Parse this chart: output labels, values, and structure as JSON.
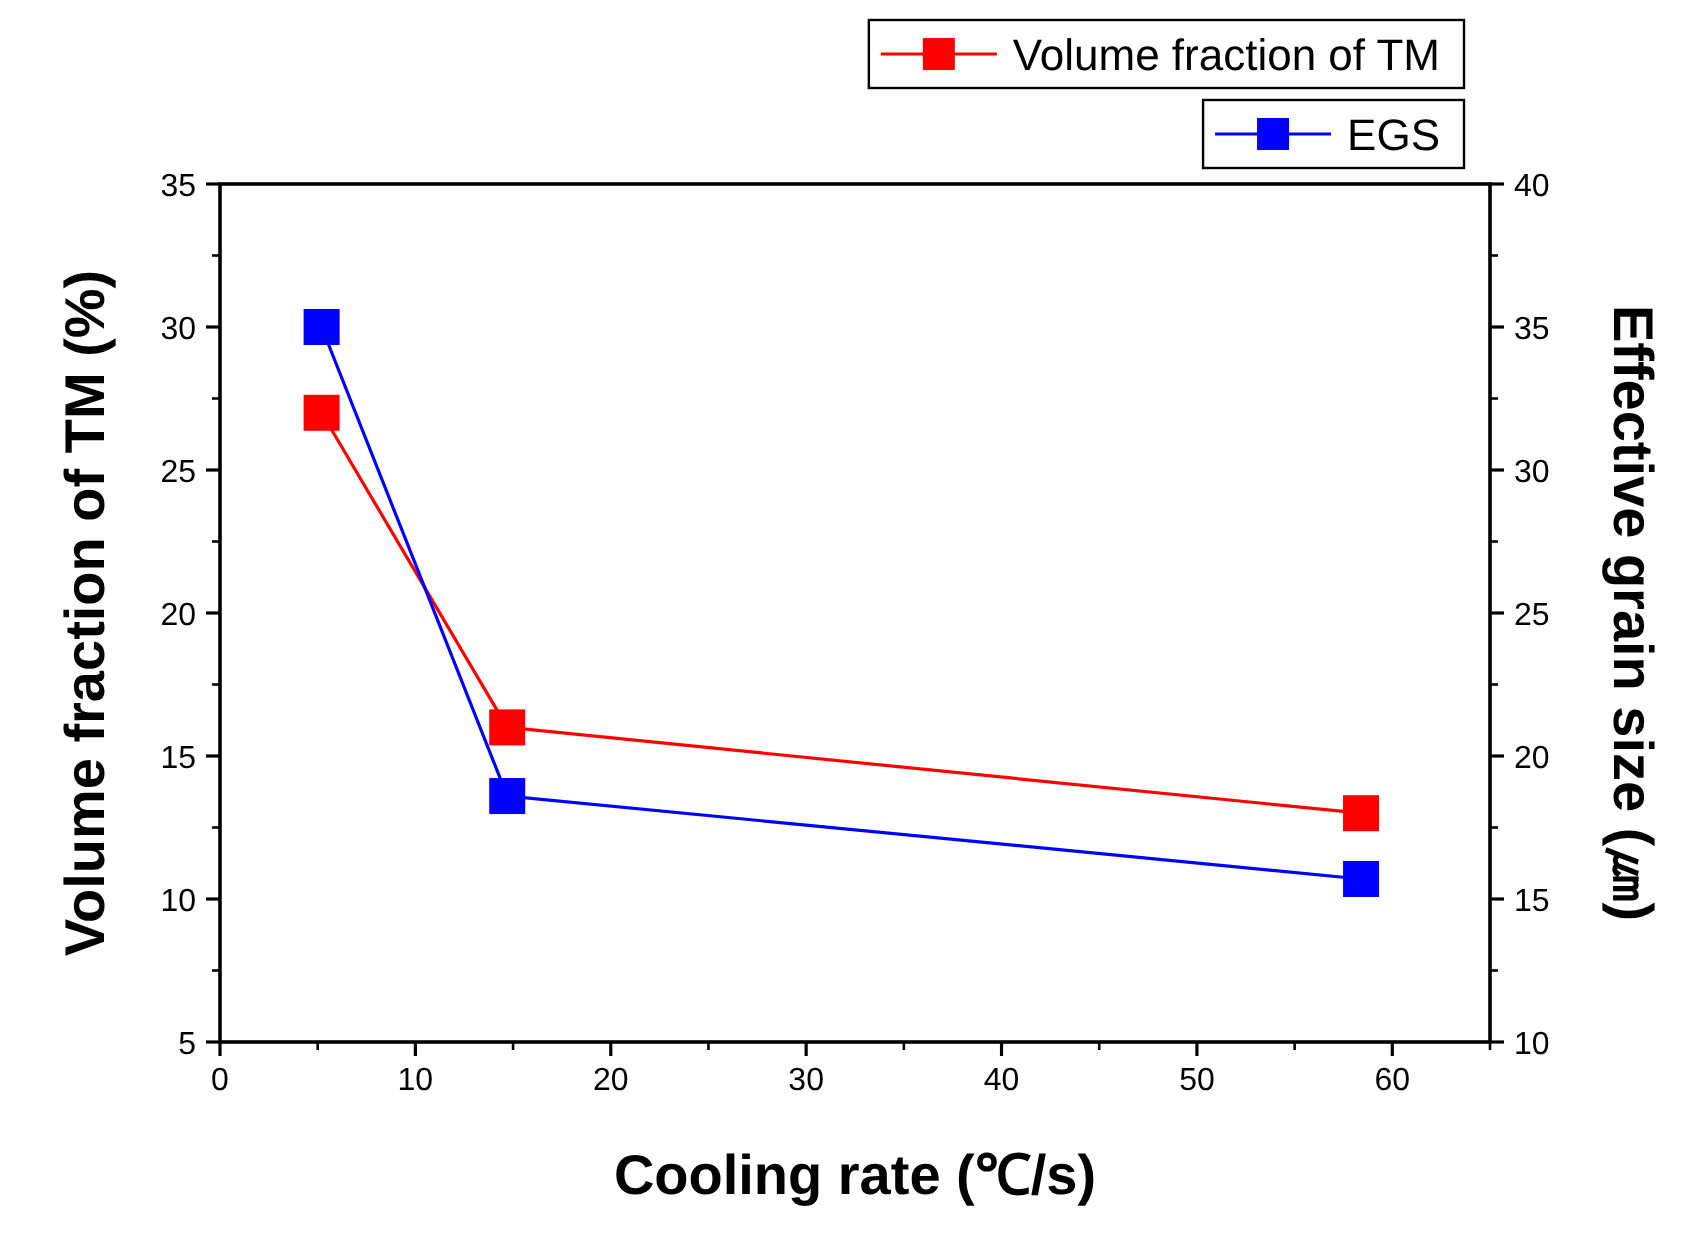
{
  "chart_data": {
    "type": "line",
    "xlabel": "Cooling rate (℃/s)",
    "ylabel": "Volume fraction of TM (%)",
    "y2label": "Effective grain size (㎛)",
    "x": [
      5.2,
      14.7,
      58.4
    ],
    "series": [
      {
        "name": "Volume fraction of TM",
        "color": "#ff0000",
        "values": [
          27.0,
          16.0,
          13.0
        ]
      },
      {
        "name": "EGS",
        "color": "#0000ff",
        "values": [
          35.0,
          18.6,
          15.7
        ],
        "axis": "y2"
      }
    ],
    "xlim": [
      0,
      65
    ],
    "xticks": [
      0,
      10,
      20,
      30,
      40,
      50,
      60
    ],
    "ylim": [
      5,
      35
    ],
    "yticks": [
      5,
      10,
      15,
      20,
      25,
      30,
      35
    ],
    "y2lim": [
      10,
      40
    ],
    "y2ticks": [
      10,
      15,
      20,
      25,
      30,
      35,
      40
    ],
    "marker": "square",
    "line_style": "solid",
    "legend": "top right",
    "grid": false
  }
}
